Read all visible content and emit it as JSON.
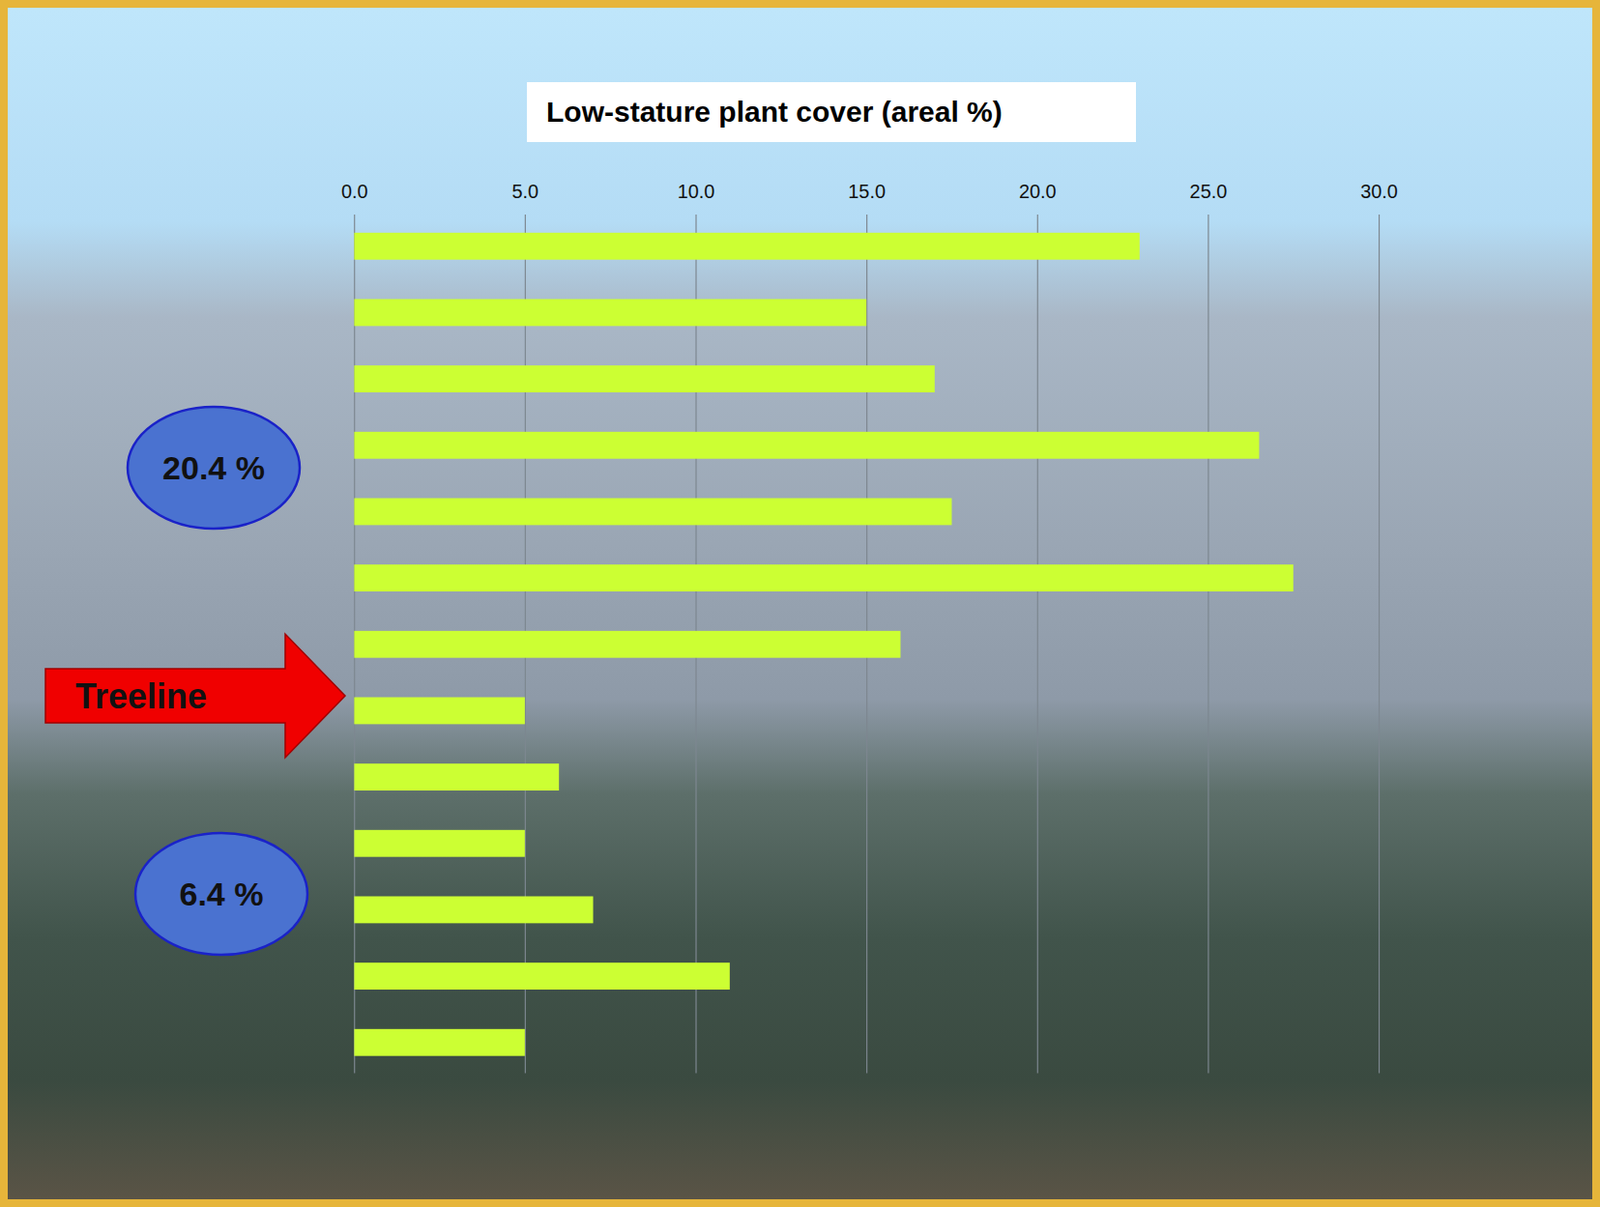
{
  "chart_data": {
    "type": "bar",
    "orientation": "horizontal",
    "title": "Low-stature plant cover (areal %)",
    "categories": [
      null,
      null,
      null,
      null,
      null,
      null,
      null,
      null,
      null,
      null,
      null,
      null,
      null
    ],
    "values": [
      23.0,
      15.0,
      17.0,
      26.5,
      17.5,
      27.5,
      16.0,
      5.0,
      6.0,
      5.0,
      7.0,
      11.0,
      5.0
    ],
    "color": "#ccff33",
    "xlim": [
      0,
      30
    ],
    "xticks": [
      {
        "value": 0,
        "label": "0.0"
      },
      {
        "value": 5,
        "label": "5.0"
      },
      {
        "value": 10,
        "label": "10.0"
      },
      {
        "value": 15,
        "label": "15.0"
      },
      {
        "value": 20,
        "label": "20.0"
      },
      {
        "value": 25,
        "label": "25.0"
      },
      {
        "value": 30,
        "label": "30.0"
      }
    ],
    "grid": true,
    "tick_labels": "x",
    "annotations": [
      "20.4 %",
      "6.4 %",
      "Treeline"
    ]
  }
}
